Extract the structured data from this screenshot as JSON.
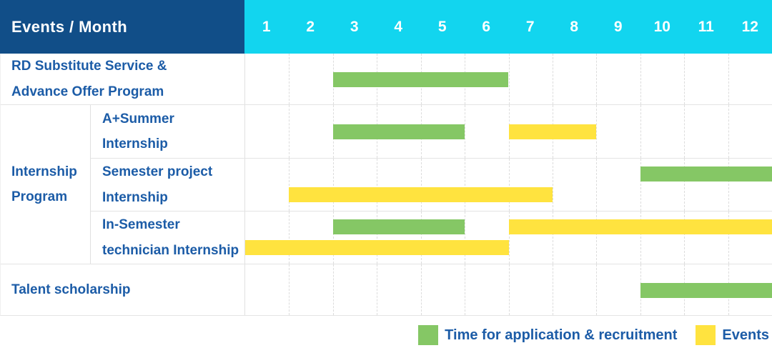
{
  "ui": {
    "header": {
      "label": "Events / Month"
    },
    "legend": {
      "items": [
        {
          "key": "application",
          "label": "Time for application & recruitment",
          "color": "#85C765"
        },
        {
          "key": "event",
          "label": "Events",
          "color": "#FFE33F"
        }
      ]
    },
    "colors": {
      "header_bg": "#114E88",
      "months_bg": "#12D5EF",
      "label_text": "#1C5CA7",
      "application_bar": "#85C765",
      "event_bar": "#FFE33F",
      "grid_line": "#DCDCDC",
      "row_border": "#E4E4E4"
    }
  },
  "chart_data": {
    "type": "table",
    "subtype": "gantt-timeline",
    "title": "Events / Month",
    "xlabel": "Month",
    "x_range": [
      1,
      12
    ],
    "grid": true,
    "legend_position": "bottom-right",
    "months": [
      "1",
      "2",
      "3",
      "4",
      "5",
      "6",
      "7",
      "8",
      "9",
      "10",
      "11",
      "12"
    ],
    "rows": [
      {
        "label": "RD Substitute Service &\nAdvance Offer Program",
        "group": null,
        "bars": [
          {
            "kind": "application",
            "start_month": 3,
            "end_month": 6,
            "lane": "single"
          }
        ]
      },
      {
        "label": "A+Summer\nInternship",
        "group": "Internship\nProgram",
        "bars": [
          {
            "kind": "application",
            "start_month": 3,
            "end_month": 5,
            "lane": "single"
          },
          {
            "kind": "event",
            "start_month": 7,
            "end_month": 8,
            "lane": "single"
          }
        ]
      },
      {
        "label": "Semester project\nInternship",
        "group": "Internship\nProgram",
        "bars": [
          {
            "kind": "application",
            "start_month": 10,
            "end_month": 12,
            "lane": "top"
          },
          {
            "kind": "event",
            "start_month": 2,
            "end_month": 7,
            "lane": "bottom"
          }
        ]
      },
      {
        "label": "In-Semester\ntechnician Internship",
        "group": "Internship\nProgram",
        "bars": [
          {
            "kind": "application",
            "start_month": 3,
            "end_month": 5,
            "lane": "top"
          },
          {
            "kind": "event",
            "start_month": 7,
            "end_month": 12,
            "lane": "top"
          },
          {
            "kind": "event",
            "start_month": 1,
            "end_month": 6,
            "lane": "bottom"
          }
        ]
      },
      {
        "label": "Talent scholarship",
        "group": null,
        "bars": [
          {
            "kind": "application",
            "start_month": 10,
            "end_month": 12,
            "lane": "single"
          }
        ]
      }
    ],
    "legend_entries": [
      "Time for application & recruitment",
      "Events"
    ]
  }
}
